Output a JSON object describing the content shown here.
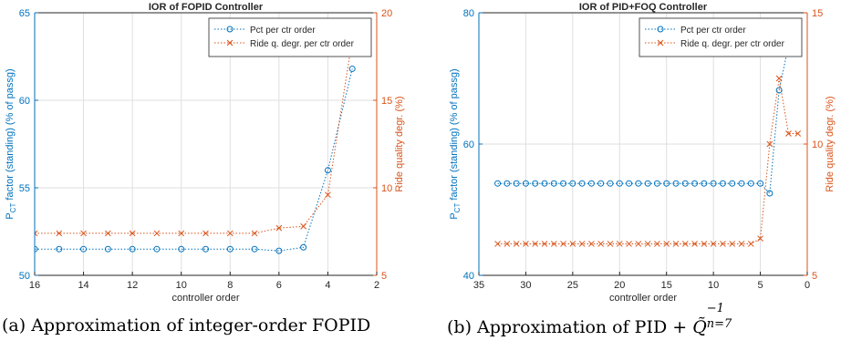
{
  "colors": {
    "pct": "#0072BD",
    "ride": "#D95319",
    "axis": "#262626",
    "grid": "#DFDFDF"
  },
  "captions": {
    "a": "(a) Approximation of integer-order FOPID",
    "b_prefix": "(b) Approximation of PID + ",
    "b_math": "Q̃",
    "b_sup": "−1",
    "b_sub": "n=7"
  },
  "chart_data": [
    {
      "type": "line",
      "title": "IOR of FOPID Controller",
      "xlabel": "controller order",
      "ylabel_left_main": "P",
      "ylabel_left_sub": "CT",
      "ylabel_left_rest": " factor (standing) (% of passg)",
      "ylabel_right": "Ride quality degr. (%)",
      "x_reversed": true,
      "xlim": [
        2,
        16
      ],
      "xticks": [
        16,
        14,
        12,
        10,
        8,
        6,
        4,
        2
      ],
      "ylim_left": [
        50,
        65
      ],
      "yticks_left": [
        50,
        55,
        60,
        65
      ],
      "ylim_right": [
        5,
        20
      ],
      "yticks_right": [
        5,
        10,
        15,
        20
      ],
      "grid": true,
      "legend_position": "top-right",
      "x": [
        16,
        15,
        14,
        13,
        12,
        11,
        10,
        9,
        8,
        7,
        6,
        5,
        4,
        3
      ],
      "series": [
        {
          "name": "Pct per ctr order",
          "axis": "left",
          "marker": "circle",
          "color": "#0072BD",
          "values": [
            51.5,
            51.5,
            51.5,
            51.5,
            51.5,
            51.5,
            51.5,
            51.5,
            51.5,
            51.5,
            51.4,
            51.6,
            56.0,
            61.8
          ]
        },
        {
          "name": "Ride q. degr. per ctr order",
          "axis": "right",
          "marker": "x",
          "color": "#D95319",
          "values": [
            7.4,
            7.4,
            7.4,
            7.4,
            7.4,
            7.4,
            7.4,
            7.4,
            7.4,
            7.4,
            7.7,
            7.8,
            9.6,
            18.5
          ]
        }
      ]
    },
    {
      "type": "line",
      "title": "IOR of PID+FOQ Controller",
      "xlabel": "controller order",
      "ylabel_left_main": "P",
      "ylabel_left_sub": "CT",
      "ylabel_left_rest": " factor (standing) (% of passg)",
      "ylabel_right": "Ride quality degr. (%)",
      "x_reversed": true,
      "xlim": [
        0,
        35
      ],
      "xticks": [
        35,
        30,
        25,
        20,
        15,
        10,
        5,
        0
      ],
      "ylim_left": [
        40,
        80
      ],
      "yticks_left": [
        40,
        60,
        80
      ],
      "ylim_right": [
        5,
        15
      ],
      "yticks_right": [
        5,
        10,
        15
      ],
      "grid": true,
      "legend_position": "top-right",
      "x": [
        33,
        32,
        31,
        30,
        29,
        28,
        27,
        26,
        25,
        24,
        23,
        22,
        21,
        20,
        19,
        18,
        17,
        16,
        15,
        14,
        13,
        12,
        11,
        10,
        9,
        8,
        7,
        6,
        5,
        4,
        3,
        2,
        1
      ],
      "series": [
        {
          "name": "Pct per ctr order",
          "axis": "left",
          "marker": "circle",
          "color": "#0072BD",
          "values": [
            54,
            54,
            54,
            54,
            54,
            54,
            54,
            54,
            54,
            54,
            54,
            54,
            54,
            54,
            54,
            54,
            54,
            54,
            54,
            54,
            54,
            54,
            54,
            54,
            54,
            54,
            54,
            54,
            54,
            52.5,
            68.2,
            75.0,
            75.0
          ]
        },
        {
          "name": "Ride q. degr. per ctr order",
          "axis": "right",
          "marker": "x",
          "color": "#D95319",
          "values": [
            6.2,
            6.2,
            6.2,
            6.2,
            6.2,
            6.2,
            6.2,
            6.2,
            6.2,
            6.2,
            6.2,
            6.2,
            6.2,
            6.2,
            6.2,
            6.2,
            6.2,
            6.2,
            6.2,
            6.2,
            6.2,
            6.2,
            6.2,
            6.2,
            6.2,
            6.2,
            6.2,
            6.2,
            6.4,
            10.0,
            12.5,
            10.4,
            10.4
          ]
        }
      ]
    }
  ]
}
